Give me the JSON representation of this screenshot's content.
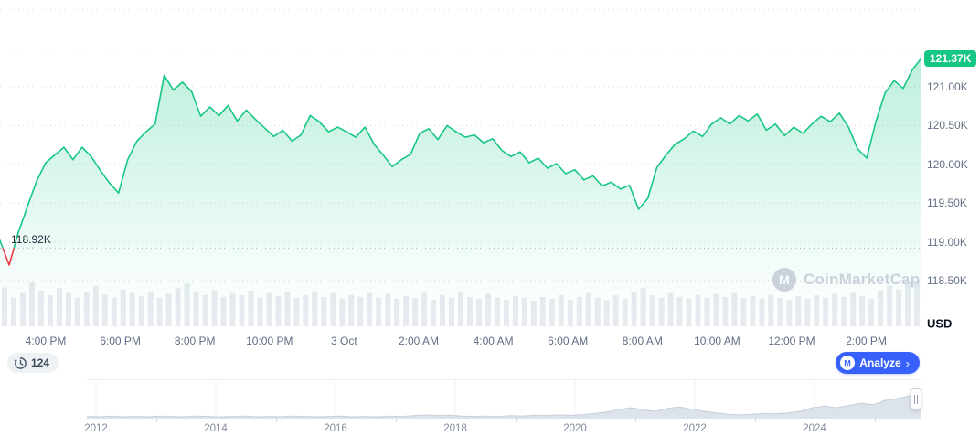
{
  "colors": {
    "green": "#16c784",
    "red": "#ea3943",
    "blue": "#3861fb",
    "axis_text": "#616e85",
    "dark_text": "#0d1421",
    "volume_bar": "#e7ebef",
    "navigator_fill": "#dde3ea",
    "watermark": "#c9d1db"
  },
  "y_axis": {
    "labels": [
      "121.00K",
      "120.50K",
      "120.00K",
      "119.50K",
      "119.00K",
      "118.50K"
    ],
    "values": [
      121.0,
      120.5,
      120.0,
      119.5,
      119.0,
      118.5
    ],
    "unit_label": "USD",
    "current_price_badge": "121.37K",
    "open_price_label": "118.92K"
  },
  "x_axis": {
    "labels": [
      "4:00 PM",
      "6:00 PM",
      "8:00 PM",
      "10:00 PM",
      "3 Oct",
      "2:00 AM",
      "4:00 AM",
      "6:00 AM",
      "8:00 AM",
      "10:00 AM",
      "12:00 PM",
      "2:00 PM"
    ]
  },
  "footer": {
    "history_badge": "124",
    "analyze_button": "Analyze",
    "analyze_chevron": "›"
  },
  "watermark_text": "CoinMarketCap",
  "navigator_years": [
    "2012",
    "2014",
    "2016",
    "2018",
    "2020",
    "2022",
    "2024"
  ],
  "chart_data": [
    {
      "type": "line",
      "name": "price-24h",
      "unit": "USD (thousands)",
      "open": 118.92,
      "current": 121.37,
      "ylim": [
        118.4,
        121.7
      ],
      "grid_values": [
        122.0,
        121.5,
        121.0,
        120.5,
        120.0,
        119.5,
        119.0,
        118.5
      ],
      "x_tick_labels": [
        "4:00 PM",
        "6:00 PM",
        "8:00 PM",
        "10:00 PM",
        "3 Oct",
        "2:00 AM",
        "4:00 AM",
        "6:00 AM",
        "8:00 AM",
        "10:00 AM",
        "12:00 PM",
        "2:00 PM"
      ],
      "values": [
        119.02,
        118.7,
        119.12,
        119.45,
        119.78,
        120.02,
        120.12,
        120.22,
        120.06,
        120.22,
        120.1,
        119.92,
        119.76,
        119.63,
        120.06,
        120.3,
        120.42,
        120.52,
        121.15,
        120.96,
        121.06,
        120.94,
        120.62,
        120.74,
        120.63,
        120.76,
        120.56,
        120.7,
        120.58,
        120.47,
        120.36,
        120.44,
        120.3,
        120.38,
        120.63,
        120.55,
        120.42,
        120.48,
        120.42,
        120.35,
        120.48,
        120.26,
        120.12,
        119.97,
        120.06,
        120.13,
        120.4,
        120.46,
        120.32,
        120.5,
        120.42,
        120.35,
        120.38,
        120.28,
        120.33,
        120.18,
        120.1,
        120.16,
        120.02,
        120.08,
        119.95,
        120.01,
        119.88,
        119.93,
        119.8,
        119.85,
        119.72,
        119.77,
        119.68,
        119.73,
        119.42,
        119.56,
        119.96,
        120.12,
        120.26,
        120.33,
        120.43,
        120.36,
        120.52,
        120.6,
        120.52,
        120.63,
        120.56,
        120.65,
        120.44,
        120.52,
        120.37,
        120.48,
        120.4,
        120.52,
        120.62,
        120.55,
        120.66,
        120.48,
        120.2,
        120.08,
        120.55,
        120.92,
        121.08,
        120.98,
        121.22,
        121.37
      ]
    },
    {
      "type": "bar",
      "name": "volume",
      "unit": "relative",
      "values": [
        0.82,
        0.6,
        0.7,
        0.93,
        0.75,
        0.65,
        0.8,
        0.7,
        0.6,
        0.72,
        0.85,
        0.67,
        0.6,
        0.78,
        0.7,
        0.64,
        0.74,
        0.6,
        0.68,
        0.8,
        0.9,
        0.72,
        0.66,
        0.76,
        0.62,
        0.7,
        0.65,
        0.75,
        0.6,
        0.7,
        0.64,
        0.72,
        0.6,
        0.66,
        0.74,
        0.62,
        0.7,
        0.58,
        0.66,
        0.62,
        0.7,
        0.6,
        0.68,
        0.58,
        0.64,
        0.6,
        0.7,
        0.56,
        0.66,
        0.6,
        0.72,
        0.62,
        0.58,
        0.68,
        0.6,
        0.56,
        0.64,
        0.6,
        0.54,
        0.62,
        0.58,
        0.66,
        0.56,
        0.62,
        0.7,
        0.6,
        0.55,
        0.65,
        0.58,
        0.72,
        0.8,
        0.65,
        0.6,
        0.7,
        0.62,
        0.58,
        0.66,
        0.6,
        0.68,
        0.62,
        0.7,
        0.6,
        0.64,
        0.58,
        0.66,
        0.6,
        0.55,
        0.63,
        0.58,
        0.65,
        0.6,
        0.68,
        0.62,
        0.7,
        0.64,
        0.58,
        0.75,
        0.85,
        0.78,
        0.9,
        0.95
      ]
    },
    {
      "type": "area",
      "name": "all-time-range-navigator",
      "unit": "relative",
      "x_tick_labels": [
        "2012",
        "2014",
        "2016",
        "2018",
        "2020",
        "2022",
        "2024"
      ],
      "values": [
        0.06,
        0.05,
        0.07,
        0.05,
        0.06,
        0.05,
        0.07,
        0.06,
        0.05,
        0.07,
        0.06,
        0.05,
        0.06,
        0.07,
        0.05,
        0.06,
        0.05,
        0.07,
        0.06,
        0.05,
        0.06,
        0.07,
        0.05,
        0.06,
        0.05,
        0.07,
        0.06,
        0.08,
        0.1,
        0.08,
        0.09,
        0.07,
        0.06,
        0.07,
        0.06,
        0.08,
        0.07,
        0.09,
        0.08,
        0.1,
        0.09,
        0.11,
        0.14,
        0.18,
        0.25,
        0.3,
        0.24,
        0.2,
        0.28,
        0.32,
        0.26,
        0.2,
        0.16,
        0.12,
        0.1,
        0.12,
        0.14,
        0.13,
        0.16,
        0.2,
        0.3,
        0.34,
        0.3,
        0.36,
        0.42,
        0.38,
        0.5,
        0.55,
        0.62,
        0.78
      ]
    }
  ]
}
